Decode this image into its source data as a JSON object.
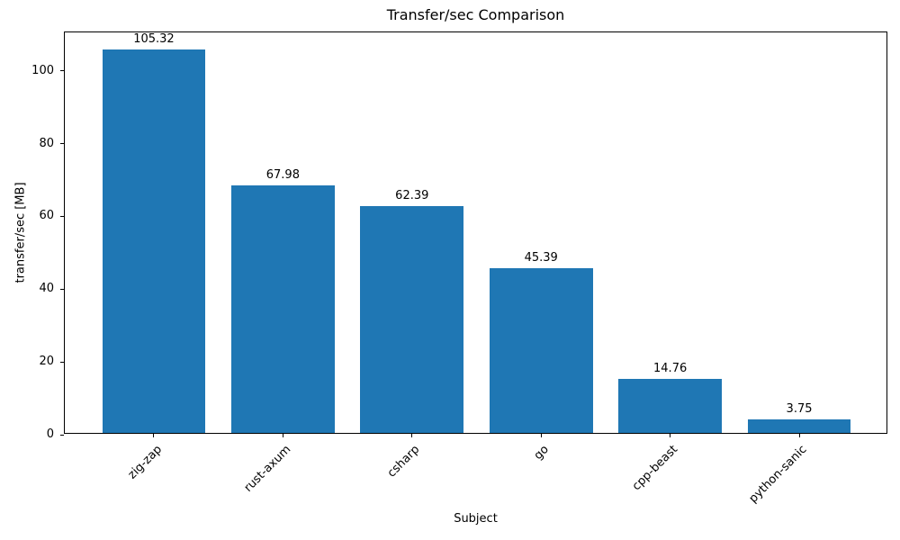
{
  "chart_data": {
    "type": "bar",
    "title": "Transfer/sec Comparison",
    "xlabel": "Subject",
    "ylabel": "transfer/sec [MB]",
    "categories": [
      "zig-zap",
      "rust-axum",
      "csharp",
      "go",
      "cpp-beast",
      "python-sanic"
    ],
    "values": [
      105.32,
      67.98,
      62.39,
      45.39,
      14.76,
      3.75
    ],
    "value_labels": [
      "105.32",
      "67.98",
      "62.39",
      "45.39",
      "14.76",
      "3.75"
    ],
    "yticks": [
      0,
      20,
      40,
      60,
      80,
      100
    ],
    "ylim": [
      0,
      110.59
    ],
    "bar_color": "#1f77b4",
    "axis_color": "#000000",
    "background_color": "#ffffff",
    "xtick_rotation_deg": 45,
    "legend": false,
    "grid": false
  }
}
